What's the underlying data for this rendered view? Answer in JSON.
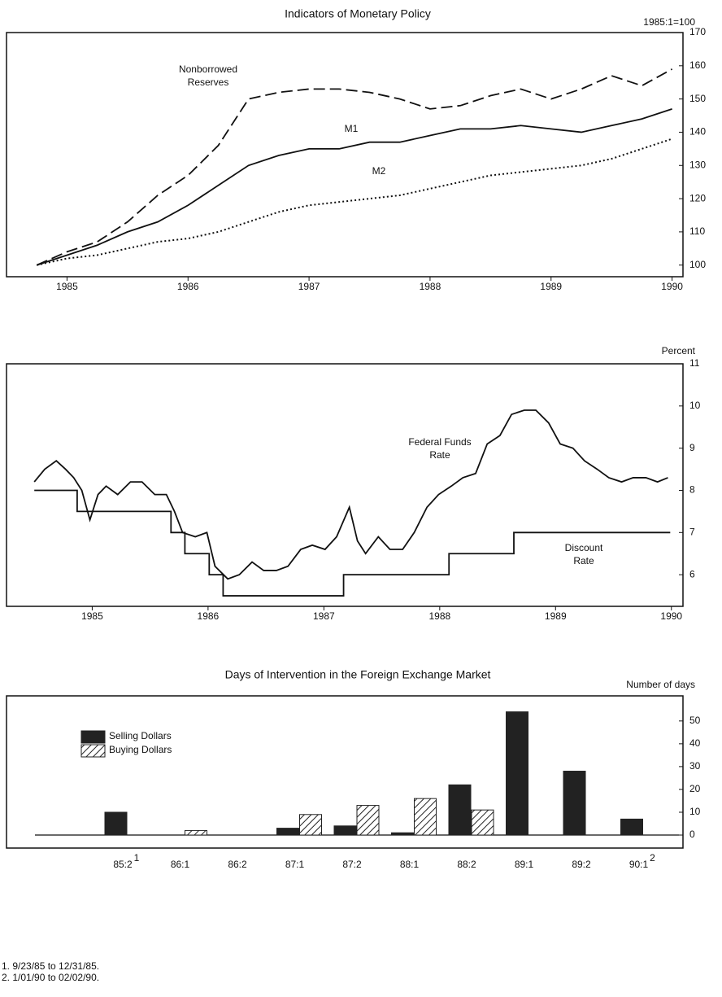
{
  "chart_data": [
    {
      "type": "line",
      "title": "Indicators of Monetary Policy",
      "y_label": "1985:1=100",
      "x": [
        1984.75,
        1985,
        1985.25,
        1985.5,
        1985.75,
        1986,
        1986.25,
        1986.5,
        1986.75,
        1987,
        1987.25,
        1987.5,
        1987.75,
        1988,
        1988.25,
        1988.5,
        1988.75,
        1989,
        1989.25,
        1989.5,
        1989.75,
        1990
      ],
      "series": [
        {
          "name": "Nonborrowed Reserves",
          "color": "#111111",
          "style": "dashed",
          "values": [
            100,
            104,
            107,
            113,
            121,
            127,
            136,
            150,
            152,
            153,
            153,
            152,
            150,
            147,
            148,
            151,
            153,
            150,
            153,
            157,
            154,
            159
          ]
        },
        {
          "name": "M1",
          "color": "#111111",
          "style": "solid",
          "values": [
            100,
            103,
            106,
            110,
            113,
            118,
            124,
            130,
            133,
            135,
            135,
            137,
            137,
            139,
            141,
            141,
            142,
            141,
            140,
            142,
            144,
            147
          ]
        },
        {
          "name": "M2",
          "color": "#111111",
          "style": "dotted",
          "values": [
            100,
            102,
            103,
            105,
            107,
            108,
            110,
            113,
            116,
            118,
            119,
            120,
            121,
            123,
            125,
            127,
            128,
            129,
            130,
            132,
            135,
            138
          ]
        }
      ],
      "xlim": [
        1984.5,
        1990.09
      ],
      "xticks": [
        1985,
        1986,
        1987,
        1988,
        1989,
        1990
      ],
      "ylim": [
        96.5,
        170
      ],
      "yticks": [
        100,
        110,
        120,
        130,
        140,
        150,
        160,
        170
      ],
      "grid": false
    },
    {
      "type": "line",
      "y_label": "Percent",
      "series": [
        {
          "name": "Federal Funds Rate",
          "color": "#111111",
          "style": "solid",
          "x": [
            1984.5,
            1984.59,
            1984.69,
            1984.77,
            1984.84,
            1984.91,
            1984.98,
            1985.05,
            1985.12,
            1985.22,
            1985.33,
            1985.43,
            1985.54,
            1985.64,
            1985.71,
            1985.78,
            1985.89,
            1985.99,
            1986.06,
            1986.17,
            1986.27,
            1986.38,
            1986.48,
            1986.59,
            1986.69,
            1986.8,
            1986.9,
            1987.01,
            1987.11,
            1987.22,
            1987.29,
            1987.36,
            1987.47,
            1987.57,
            1987.68,
            1987.78,
            1987.89,
            1987.99,
            1988.1,
            1988.2,
            1988.31,
            1988.41,
            1988.52,
            1988.62,
            1988.73,
            1988.83,
            1988.94,
            1989.04,
            1989.15,
            1989.25,
            1989.36,
            1989.46,
            1989.57,
            1989.67,
            1989.78,
            1989.88,
            1989.97
          ],
          "values": [
            8.2,
            8.5,
            8.7,
            8.5,
            8.3,
            8.0,
            7.3,
            7.9,
            8.1,
            7.9,
            8.2,
            8.2,
            7.9,
            7.9,
            7.5,
            7.0,
            6.9,
            7.0,
            6.2,
            5.9,
            6.0,
            6.3,
            6.1,
            6.1,
            6.2,
            6.6,
            6.7,
            6.6,
            6.9,
            7.6,
            6.8,
            6.5,
            6.9,
            6.6,
            6.6,
            7.0,
            7.6,
            7.9,
            8.1,
            8.3,
            8.4,
            9.1,
            9.3,
            9.8,
            9.9,
            9.9,
            9.6,
            9.1,
            9.0,
            8.7,
            8.5,
            8.3,
            8.2,
            8.3,
            8.3,
            8.2,
            8.3
          ]
        },
        {
          "name": "Discount Rate",
          "color": "#111111",
          "style": "solid",
          "step": true,
          "x": [
            1984.5,
            1984.87,
            1985.68,
            1985.8,
            1986.01,
            1986.13,
            1987.17,
            1988.08,
            1988.64,
            1989.99
          ],
          "values": [
            8,
            7.5,
            7,
            6.5,
            6,
            5.5,
            6,
            6.5,
            7,
            7
          ]
        }
      ],
      "xlim": [
        1984.26,
        1990.1
      ],
      "xticks": [
        1985,
        1986,
        1987,
        1988,
        1989,
        1990
      ],
      "ylim": [
        5.25,
        11
      ],
      "yticks": [
        6,
        7,
        8,
        9,
        10,
        11
      ],
      "grid": false
    },
    {
      "type": "bar",
      "title": "Days of Intervention in the Foreign Exchange Market",
      "y_label": "Number of days",
      "categories": [
        "85:2",
        "86:1",
        "86:2",
        "87:1",
        "87:2",
        "88:1",
        "88:2",
        "89:1",
        "89:2",
        "90:1"
      ],
      "category_notes": [
        "1",
        null,
        null,
        null,
        null,
        null,
        null,
        null,
        null,
        "2"
      ],
      "series": [
        {
          "name": "Selling Dollars",
          "color": "#222222",
          "fill": "solid",
          "values": [
            10,
            0,
            0,
            3,
            4,
            1,
            22,
            54,
            28,
            7
          ]
        },
        {
          "name": "Buying Dollars",
          "color": "#222222",
          "fill": "hatch",
          "values": [
            0,
            2,
            0,
            9,
            13,
            16,
            11,
            0,
            0,
            0
          ]
        }
      ],
      "ylim": [
        -5.7,
        61
      ],
      "yticks": [
        0,
        10,
        20,
        30,
        40,
        50
      ],
      "grid": false,
      "footnotes": [
        "1. 9/23/85 to 12/31/85.",
        "2. 1/01/90 to 02/02/90."
      ]
    }
  ]
}
